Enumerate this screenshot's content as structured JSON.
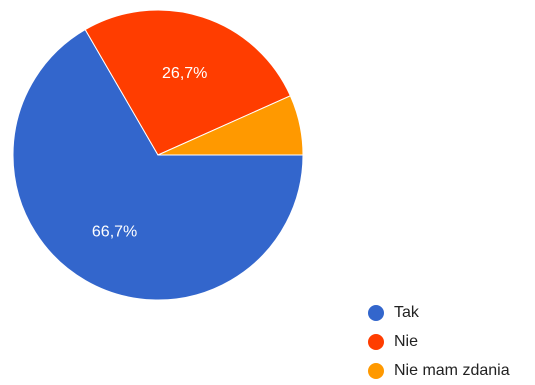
{
  "chart_data": {
    "type": "pie",
    "title": "",
    "slices": [
      {
        "label": "Tak",
        "value": 66.7,
        "color": "#3366cc",
        "value_label": "66,7%"
      },
      {
        "label": "Nie",
        "value": 26.7,
        "color": "#ff3d00",
        "value_label": "26,7%"
      },
      {
        "label": "Nie mam zdania",
        "value": 6.7,
        "color": "#ff9900",
        "value_label": ""
      }
    ],
    "legend_placement": "bottom-right"
  }
}
